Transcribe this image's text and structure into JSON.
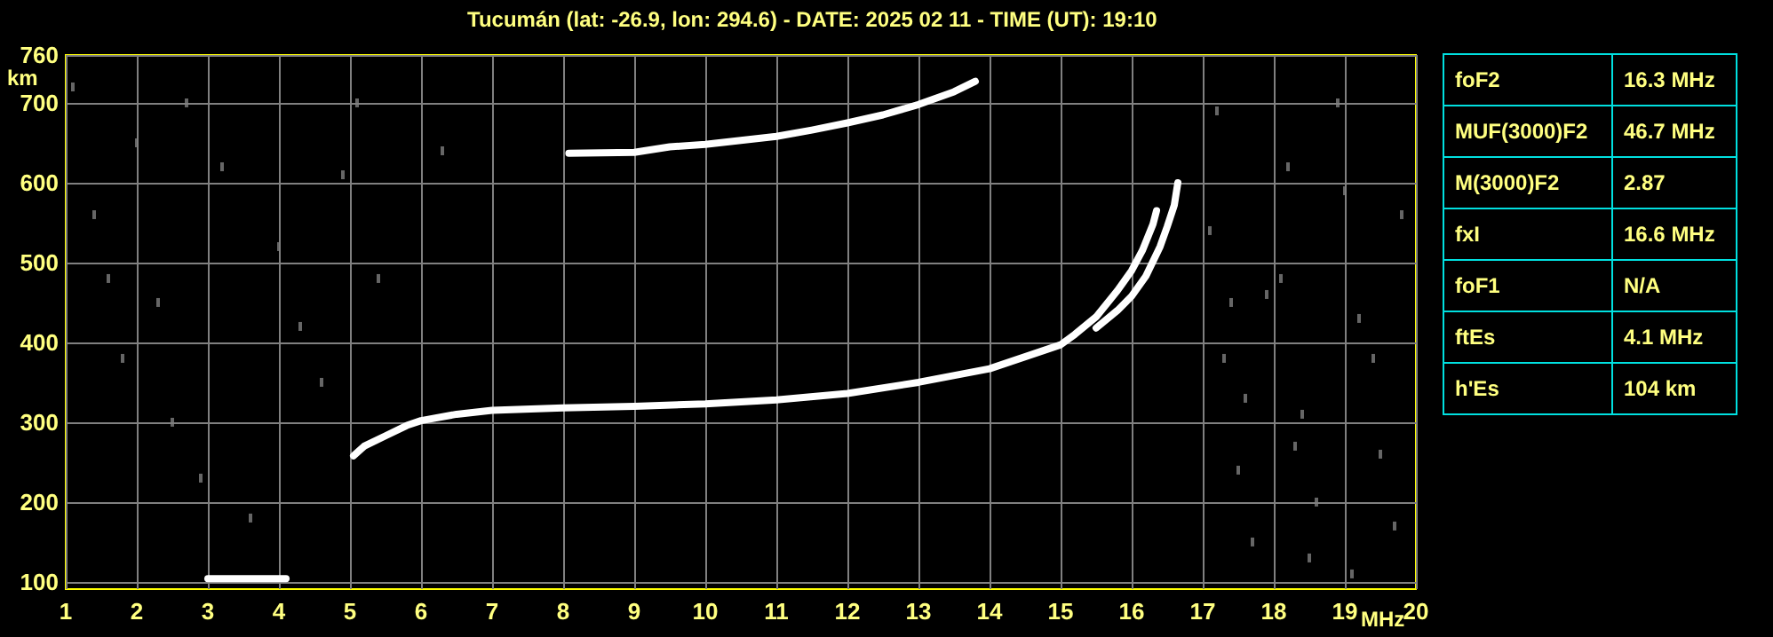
{
  "chart_data": [
    {
      "type": "scatter",
      "title": "Tucumán (lat: -26.9, lon: 294.6) - DATE: 2025 02 11 - TIME (UT): 19:10",
      "xlabel": "MHz",
      "ylabel": "km",
      "xlim": [
        1,
        20
      ],
      "ylim": [
        91,
        760
      ],
      "xticks": [
        1,
        2,
        3,
        4,
        5,
        6,
        7,
        8,
        9,
        10,
        11,
        12,
        13,
        14,
        15,
        16,
        17,
        18,
        19,
        20
      ],
      "yticks": [
        100,
        200,
        300,
        400,
        500,
        600,
        700,
        760
      ],
      "grid": true,
      "marker": "square",
      "series": [
        {
          "type": "line",
          "marker": "none",
          "color": "#ffffff",
          "x": [
            3.0,
            3.5,
            4.1
          ],
          "values": [
            104,
            104,
            104
          ]
        },
        {
          "type": "line",
          "marker": "none",
          "color": "#ffffff",
          "x": [
            5.05,
            5.2,
            5.5,
            5.8,
            6.0,
            6.5,
            7,
            8,
            9,
            10,
            11,
            12,
            13,
            14,
            15,
            15.2,
            15.5,
            15.8,
            16.0,
            16.15,
            16.3,
            16.35
          ],
          "values": [
            258,
            270,
            283,
            296,
            302,
            310,
            315,
            318,
            320,
            323,
            328,
            336,
            350,
            367,
            397,
            410,
            432,
            465,
            490,
            515,
            548,
            565
          ]
        },
        {
          "type": "line",
          "marker": "none",
          "color": "#ffffff",
          "x": [
            15.5,
            15.8,
            16.0,
            16.2,
            16.4,
            16.5,
            16.6,
            16.65
          ],
          "values": [
            418,
            440,
            458,
            483,
            520,
            545,
            572,
            600
          ]
        },
        {
          "type": "line",
          "marker": "none",
          "color": "#ffffff",
          "x": [
            8.08,
            9,
            9.5,
            10,
            10.5,
            11,
            11.5,
            12,
            12.5,
            13,
            13.5,
            13.8
          ],
          "values": [
            637,
            638,
            645,
            648,
            653,
            658,
            666,
            675,
            685,
            698,
            714,
            727
          ]
        },
        {
          "color": "#808080",
          "x": [
            1.1,
            1.4,
            1.6,
            1.8,
            2.0,
            2.3,
            2.5,
            2.7,
            2.9,
            3.2,
            3.6,
            4.0,
            4.3,
            4.6,
            4.9,
            5.1,
            5.4,
            6.3,
            17.1,
            17.3,
            17.5,
            17.7,
            17.9,
            18.2,
            18.4,
            18.6,
            18.9,
            19.2,
            19.5,
            19.8,
            17.2,
            17.6,
            18.1,
            18.5,
            19.0,
            19.4,
            19.7,
            17.4,
            18.3,
            19.1
          ],
          "values": [
            720,
            560,
            480,
            380,
            650,
            450,
            300,
            700,
            230,
            620,
            180,
            520,
            420,
            350,
            610,
            700,
            480,
            640,
            540,
            380,
            240,
            150,
            460,
            620,
            310,
            200,
            700,
            430,
            260,
            560,
            690,
            330,
            480,
            130,
            590,
            380,
            170,
            450,
            270,
            110
          ]
        }
      ]
    },
    {
      "type": "other",
      "annotations": [
        "foF2",
        "16.3 MHz",
        "MUF(3000)F2",
        "46.7 MHz",
        "M(3000)F2",
        "2.87",
        "fxI",
        "16.6 MHz",
        "foF1",
        "N/A",
        "ftEs",
        "4.1 MHz",
        "h'Es",
        "104 km"
      ]
    }
  ]
}
